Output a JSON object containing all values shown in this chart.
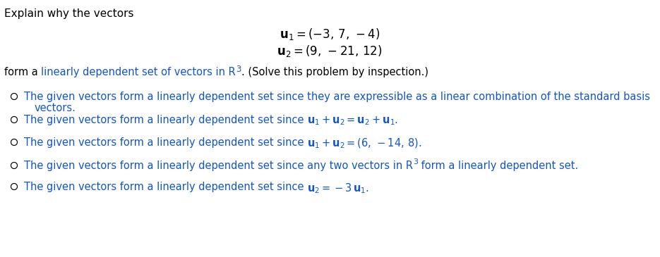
{
  "bg_color": "#ffffff",
  "black": "#000000",
  "blue": "#1155CC",
  "figsize": [
    9.35,
    3.65
  ],
  "dpi": 100,
  "title": "Explain why the vectors",
  "vec1": "u₁ = (−3, 7, −4)",
  "vec2": "u₂ = (9, −21, 12)",
  "subtitle_black": "form a ",
  "subtitle_blue": "linearly dependent set of vectors in R",
  "subtitle_sup": "3",
  "subtitle_end": ". (Solve this problem by inspection.)",
  "option_prefix": "The given vectors form a linearly dependent set since ",
  "options": [
    {
      "line1_black": "The given vectors form a linearly dependent set since they are expressible as a ",
      "line1_blue": "linear combination",
      "line1_black2": " of the standard basis",
      "line2": "vectors.",
      "has_line2": true
    },
    {
      "prefix_black": "The given vectors form a linearly dependent set since ",
      "bold_blue": "u₁ + u₂ = u₂ + u₁",
      "suffix_black": ".",
      "has_line2": false
    },
    {
      "prefix_black": "The given vectors form a linearly dependent set since ",
      "bold_blue": "u₁ + u₂ = (6, -14, 8)",
      "suffix_black": ".",
      "has_line2": false
    },
    {
      "prefix_black": "The given vectors form a linearly dependent set since any two vectors in R",
      "superscript": "3",
      "suffix_black": " form a ",
      "suffix_blue": "linearly dependent set",
      "suffix_black2": ".",
      "has_line2": false
    },
    {
      "prefix_black": "The given vectors form a linearly dependent set since ",
      "bold_blue": "u₂ = -3 u₁",
      "suffix_black": ".",
      "has_line2": false
    }
  ],
  "circle_r": 4.5,
  "fs_title": 11.0,
  "fs_vec": 12.0,
  "fs_sub": 10.5,
  "fs_opt": 10.5
}
